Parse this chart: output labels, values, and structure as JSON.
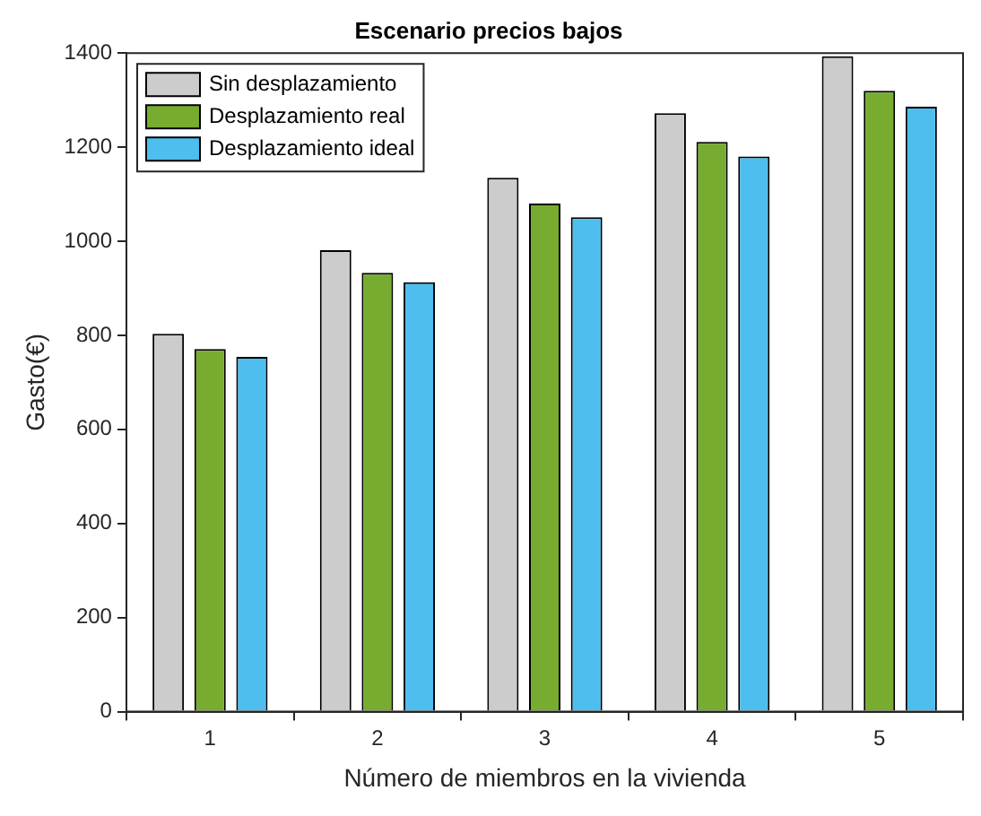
{
  "chart_data": {
    "type": "bar",
    "title": "Escenario precios bajos",
    "xlabel": "Número de miembros en la vivienda",
    "ylabel": "Gasto(€)",
    "categories": [
      "1",
      "2",
      "3",
      "4",
      "5"
    ],
    "series": [
      {
        "name": "Sin desplazamiento",
        "color": "#cccccc",
        "values": [
          803,
          981,
          1135,
          1272,
          1393
        ]
      },
      {
        "name": "Desplazamiento real",
        "color": "#77ac30",
        "values": [
          771,
          933,
          1080,
          1211,
          1320
        ]
      },
      {
        "name": "Desplazamiento ideal",
        "color": "#4dbeee",
        "values": [
          754,
          913,
          1051,
          1180,
          1286
        ]
      }
    ],
    "ylim": [
      0,
      1400
    ],
    "yticks": [
      0,
      200,
      400,
      600,
      800,
      1000,
      1200,
      1400
    ],
    "grid": false,
    "legend": "top left"
  }
}
